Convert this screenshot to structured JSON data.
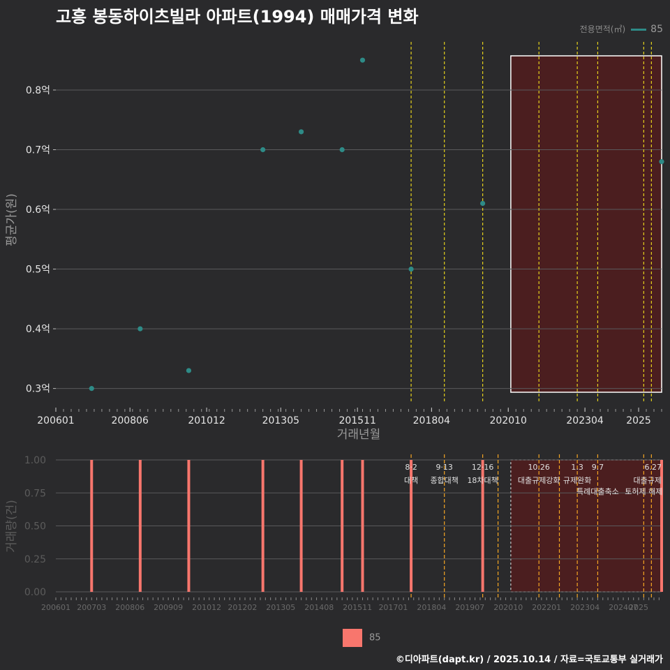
{
  "title": "고흥 봉동하이츠빌라 아파트(1994) 매매가격 변화",
  "legend_title": "전용면적(㎡)",
  "series_name": "85",
  "source": "©디아파트(dapt.kr) / 2025.10.14 / 자료=국토교통부 실거래가",
  "colors": {
    "background": "#2a2a2c",
    "point": "#2e8b87",
    "bar": "#f8766d",
    "policy_yellow": "#e6d21c",
    "policy_orange": "#f5a623",
    "highlight_fill": "#5a1a1a"
  },
  "chart_data": [
    {
      "type": "scatter",
      "title": "고흥 봉동하이츠빌라 아파트(1994) 매매가격 변화",
      "xlabel": "거래년월",
      "ylabel": "평균가(원)",
      "x_range": [
        "2006-01",
        "2025-10"
      ],
      "x_ticks": [
        "200601",
        "200806",
        "201012",
        "201305",
        "201511",
        "201804",
        "202010",
        "202304",
        "2025"
      ],
      "y_range": [
        0.275,
        0.89
      ],
      "y_ticks": [
        0.3,
        0.4,
        0.5,
        0.6,
        0.7,
        0.8
      ],
      "y_tick_labels": [
        "0.3억",
        "0.4억",
        "0.5억",
        "0.6억",
        "0.7억",
        "0.8억"
      ],
      "series": [
        {
          "name": "85",
          "points": [
            {
              "x": "2007-03",
              "y": 0.3
            },
            {
              "x": "2008-10",
              "y": 0.4
            },
            {
              "x": "2010-05",
              "y": 0.33
            },
            {
              "x": "2012-10",
              "y": 0.7
            },
            {
              "x": "2014-01",
              "y": 0.73
            },
            {
              "x": "2015-05",
              "y": 0.7
            },
            {
              "x": "2016-01",
              "y": 0.85
            },
            {
              "x": "2017-08",
              "y": 0.5
            },
            {
              "x": "2019-12",
              "y": 0.61
            },
            {
              "x": "2025-10",
              "y": 0.68
            }
          ]
        }
      ],
      "policy_lines": [
        "2017-08",
        "2018-09",
        "2019-12",
        "2021-10",
        "2023-01",
        "2023-09",
        "2025-03",
        "2025-06"
      ],
      "highlight_range": [
        "2020-11",
        "2025-10"
      ]
    },
    {
      "type": "bar",
      "ylabel": "거래량(건)",
      "y_range": [
        0,
        1
      ],
      "y_ticks": [
        0,
        0.25,
        0.5,
        0.75,
        1
      ],
      "y_tick_labels": [
        "0.00",
        "0.25",
        "0.50",
        "0.75",
        "1.00"
      ],
      "x_ticks": [
        "200601",
        "200703",
        "200806",
        "200909",
        "201012",
        "201202",
        "201305",
        "201408",
        "201511",
        "201701",
        "201804",
        "201907",
        "202010",
        "202201",
        "202304",
        "202407",
        "2025"
      ],
      "bars": [
        {
          "x": "2007-03",
          "value": 1
        },
        {
          "x": "2008-10",
          "value": 1
        },
        {
          "x": "2010-05",
          "value": 1
        },
        {
          "x": "2012-10",
          "value": 1
        },
        {
          "x": "2014-01",
          "value": 1
        },
        {
          "x": "2015-05",
          "value": 1
        },
        {
          "x": "2016-01",
          "value": 1
        },
        {
          "x": "2017-08",
          "value": 1
        },
        {
          "x": "2019-12",
          "value": 1
        },
        {
          "x": "2025-10",
          "value": 1
        }
      ],
      "policy_lines": [
        "2017-08",
        "2018-09",
        "2019-12",
        "2020-06",
        "2021-10",
        "2022-06",
        "2023-01",
        "2023-09",
        "2025-03",
        "2025-06"
      ],
      "annotations": [
        {
          "x": "2017-08",
          "date": "8·2",
          "text": "대책"
        },
        {
          "x": "2018-09",
          "date": "9·13",
          "text": "종합대책"
        },
        {
          "x": "2019-12",
          "date": "12·16",
          "text": "18차대책"
        },
        {
          "x": "2021-10",
          "date": "10.26",
          "text": "대출규제강화"
        },
        {
          "x": "2023-01",
          "date": "1.3",
          "text": "규제완화"
        },
        {
          "x": "2023-09",
          "date": "9.7",
          "text": "특례대출축소"
        },
        {
          "x": "2025-03",
          "date": "",
          "text": "토허제 해제"
        },
        {
          "x": "2025-06",
          "date": "6.27",
          "text": "대출규제"
        }
      ],
      "highlight_range": [
        "2020-11",
        "2025-10"
      ]
    }
  ]
}
